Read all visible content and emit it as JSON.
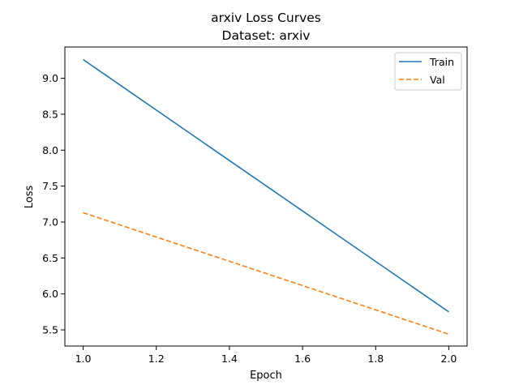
{
  "chart_data": {
    "type": "line",
    "title": "arxiv Loss Curves",
    "subtitle": "Dataset: arxiv",
    "xlabel": "Epoch",
    "ylabel": "Loss",
    "xlim": [
      0.95,
      2.05
    ],
    "ylim": [
      5.275,
      9.435
    ],
    "xticks": [
      "1.0",
      "1.2",
      "1.4",
      "1.6",
      "1.8",
      "2.0"
    ],
    "yticks": [
      "5.5",
      "6.0",
      "6.5",
      "7.0",
      "7.5",
      "8.0",
      "8.5",
      "9.0"
    ],
    "grid": false,
    "legend_position": "top-right",
    "x": [
      1.0,
      2.0
    ],
    "series": [
      {
        "name": "Train",
        "values": [
          9.26,
          5.75
        ],
        "color": "#1f77b4",
        "style": "solid"
      },
      {
        "name": "Val",
        "values": [
          7.13,
          5.44
        ],
        "color": "#ff7f0e",
        "style": "dashed"
      }
    ]
  }
}
